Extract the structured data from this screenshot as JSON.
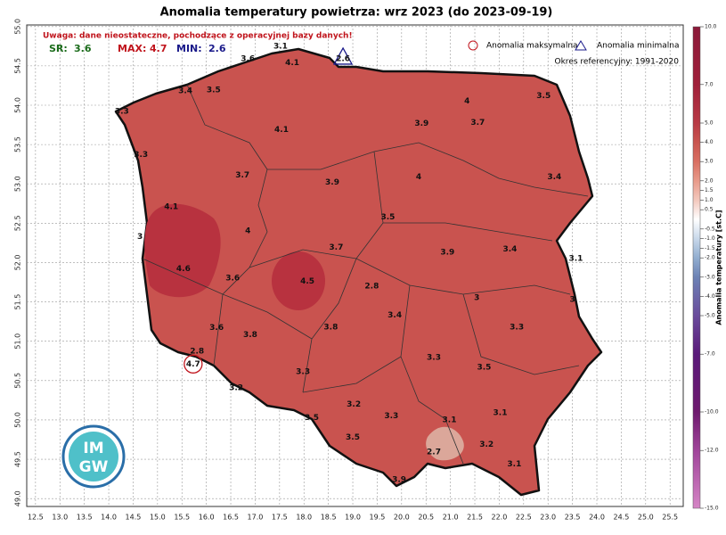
{
  "chart_data": {
    "type": "map",
    "title": "Anomalia temperatury powietrza: wrz 2023 (do 2023-09-19)",
    "warning": "Uwaga: dane nieostateczne, pochodzące z operacyjnej bazy danych!",
    "summary": [
      {
        "label": "SR:",
        "value": 3.6,
        "color": "#1a6b1a"
      },
      {
        "label": "MAX:",
        "value": 4.7,
        "color": "#c0141c"
      },
      {
        "label": "MIN:",
        "value": 2.6,
        "color": "#1a1a8a"
      }
    ],
    "legend": [
      "Anomalia maksymalna",
      "Anomalia minimalna"
    ],
    "reference": "Okres referencyjny: 1991-2020",
    "colorbar_label": "Anomalia temperatury [st.C]",
    "logo": [
      "IM",
      "GW"
    ],
    "xlim": [
      12.32,
      25.77
    ],
    "ylim": [
      48.9,
      55.02
    ],
    "xticks": [
      12.5,
      {
        "value": 13,
        "label": "13.0"
      },
      13.5,
      {
        "value": 14,
        "label": "14.0"
      },
      14.5,
      {
        "value": 15,
        "label": "15.0"
      },
      15.5,
      {
        "value": 16,
        "label": "16.0"
      },
      16.5,
      {
        "value": 17,
        "label": "17.0"
      },
      17.5,
      {
        "value": 18,
        "label": "18.0"
      },
      18.5,
      {
        "value": 19,
        "label": "19.0"
      },
      19.5,
      {
        "value": 20,
        "label": "20.0"
      },
      20.5,
      {
        "value": 21,
        "label": "21.0"
      },
      21.5,
      {
        "value": 22,
        "label": "22.0"
      },
      22.5,
      {
        "value": 23,
        "label": "23.0"
      },
      23.5,
      {
        "value": 24,
        "label": "24.0"
      },
      24.5,
      {
        "value": 25,
        "label": "25.0"
      },
      25.5
    ],
    "yticks": [
      {
        "value": 49,
        "label": "49.0"
      },
      49.5,
      {
        "value": 50,
        "label": "50.0"
      },
      50.5,
      {
        "value": 51,
        "label": "51.0"
      },
      51.5,
      {
        "value": 52,
        "label": "52.0"
      },
      52.5,
      {
        "value": 53,
        "label": "53.0"
      },
      53.5,
      {
        "value": 54,
        "label": "54.0"
      },
      54.5,
      {
        "value": 55,
        "label": "55.0"
      }
    ],
    "clim": [
      -15,
      10
    ],
    "cticks": [
      {
        "value": 10,
        "label": "10.0"
      },
      {
        "value": 7,
        "label": "7.0"
      },
      {
        "value": 5,
        "label": "5.0"
      },
      {
        "value": 4,
        "label": "4.0"
      },
      {
        "value": 3,
        "label": "3.0"
      },
      {
        "value": 2,
        "label": "2.0"
      },
      1.5,
      {
        "value": 1,
        "label": "1.0"
      },
      0.5,
      -0.5,
      {
        "value": -1,
        "label": "-1.0"
      },
      -1.5,
      {
        "value": -2,
        "label": "-2.0"
      },
      {
        "value": -3,
        "label": "-3.0"
      },
      {
        "value": -4,
        "label": "-4.0"
      },
      {
        "value": -5,
        "label": "-5.0"
      },
      {
        "value": -7,
        "label": "-7.0"
      },
      {
        "value": -10,
        "label": "-10.0"
      },
      {
        "value": -12,
        "label": "-12.0"
      },
      {
        "value": -15,
        "label": "-15.0"
      }
    ],
    "stations": {
      "values": [
        3.1,
        4.1,
        3.6,
        2.6,
        3.4,
        3.5,
        3.3,
        4.0,
        3.5,
        3.9,
        3.7,
        4.1,
        3.3,
        3.7,
        3.9,
        4.0,
        3.4,
        4.1,
        3.5,
        4.0,
        3.0,
        3.7,
        3.9,
        3.4,
        3.1,
        4.6,
        3.6,
        4.5,
        2.8,
        3.0,
        3.0,
        3.4,
        3.6,
        3.8,
        3.8,
        3.3,
        2.8,
        4.7,
        3.3,
        3.5,
        3.3,
        3.2,
        3.2,
        3.5,
        3.3,
        3.1,
        3.1,
        3.5,
        3.2,
        2.7,
        3.1,
        3.9
      ],
      "lon": [
        17.52,
        17.76,
        16.85,
        18.8,
        15.57,
        16.15,
        14.27,
        21.34,
        22.91,
        20.41,
        21.56,
        17.54,
        14.66,
        16.74,
        18.58,
        20.35,
        23.13,
        15.28,
        19.72,
        16.85,
        14.64,
        18.66,
        20.94,
        22.22,
        23.57,
        15.53,
        16.54,
        18.07,
        19.39,
        21.54,
        23.5,
        19.86,
        16.21,
        16.9,
        18.55,
        22.36,
        15.81,
        15.73,
        20.66,
        21.69,
        17.98,
        16.61,
        19.02,
        18.16,
        19.79,
        20.98,
        22.02,
        19.0,
        21.74,
        20.66,
        22.31,
        19.95
      ],
      "lat": [
        54.75,
        54.54,
        54.59,
        54.59,
        54.18,
        54.19,
        53.92,
        54.05,
        54.12,
        53.77,
        53.78,
        53.69,
        53.37,
        53.11,
        53.02,
        53.09,
        53.09,
        52.71,
        52.58,
        52.4,
        52.33,
        52.19,
        52.13,
        52.17,
        52.05,
        51.92,
        51.8,
        51.76,
        51.7,
        51.55,
        51.53,
        51.33,
        51.17,
        51.08,
        51.18,
        51.18,
        50.87,
        50.71,
        50.79,
        50.67,
        50.61,
        50.41,
        50.2,
        50.03,
        50.05,
        50.0,
        50.09,
        49.78,
        49.69,
        49.59,
        49.44,
        49.24
      ]
    }
  }
}
